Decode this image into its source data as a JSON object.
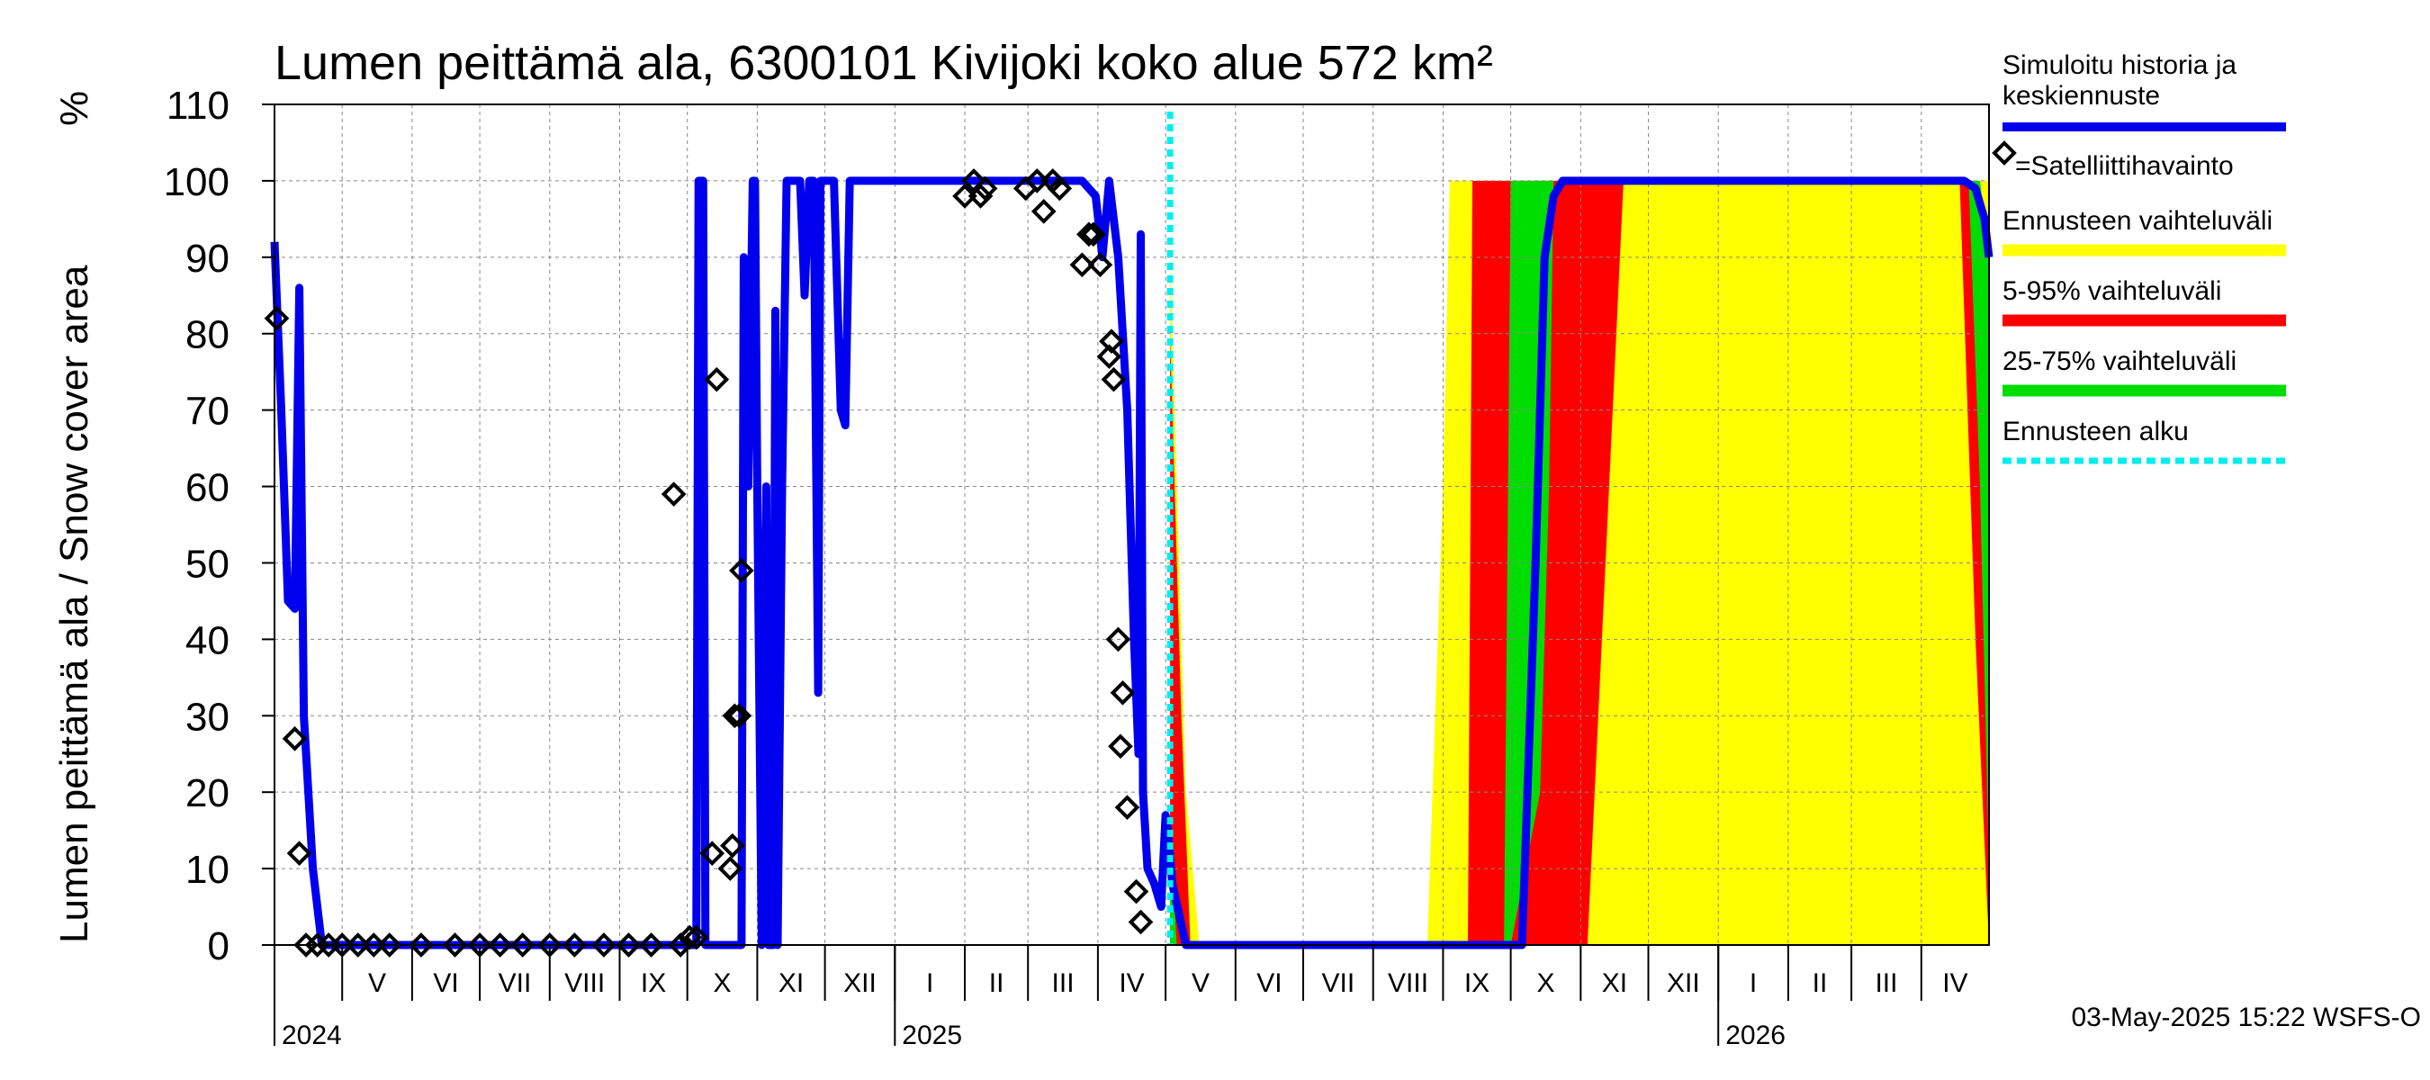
{
  "chart_data": {
    "type": "area",
    "title": "Lumen peittämä ala, 6300101 Kivijoki koko alue 572 km²",
    "ylabel": "Lumen peittämä ala / Snow cover area",
    "yunit": "%",
    "ylim": [
      0,
      110
    ],
    "yticks": [
      0,
      10,
      20,
      30,
      40,
      50,
      60,
      70,
      80,
      90,
      100,
      110
    ],
    "xlim": [
      "2024-04-01",
      "2026-05-01"
    ],
    "forecast_start": "2025-05-03",
    "grid": true,
    "months": [
      {
        "label": "V",
        "start": "2024-05-01"
      },
      {
        "label": "VI",
        "start": "2024-06-01"
      },
      {
        "label": "VII",
        "start": "2024-07-01"
      },
      {
        "label": "VIII",
        "start": "2024-08-01"
      },
      {
        "label": "IX",
        "start": "2024-09-01"
      },
      {
        "label": "X",
        "start": "2024-10-01"
      },
      {
        "label": "XI",
        "start": "2024-11-01"
      },
      {
        "label": "XII",
        "start": "2024-12-01"
      },
      {
        "label": "I",
        "start": "2025-01-01"
      },
      {
        "label": "II",
        "start": "2025-02-01"
      },
      {
        "label": "III",
        "start": "2025-03-01"
      },
      {
        "label": "IV",
        "start": "2025-04-01"
      },
      {
        "label": "V",
        "start": "2025-05-01"
      },
      {
        "label": "VI",
        "start": "2025-06-01"
      },
      {
        "label": "VII",
        "start": "2025-07-01"
      },
      {
        "label": "VIII",
        "start": "2025-08-01"
      },
      {
        "label": "IX",
        "start": "2025-09-01"
      },
      {
        "label": "X",
        "start": "2025-10-01"
      },
      {
        "label": "XI",
        "start": "2025-11-01"
      },
      {
        "label": "XII",
        "start": "2025-12-01"
      },
      {
        "label": "I",
        "start": "2026-01-01"
      },
      {
        "label": "II",
        "start": "2026-02-01"
      },
      {
        "label": "III",
        "start": "2026-03-01"
      },
      {
        "label": "IV",
        "start": "2026-04-01"
      }
    ],
    "years": [
      {
        "label": "2024",
        "date": "2024-04-01"
      },
      {
        "label": "2025",
        "date": "2025-01-01"
      },
      {
        "label": "2026",
        "date": "2026-01-01"
      }
    ],
    "series": [
      {
        "name": "Simuloitu historia ja keskiennuste",
        "color": "#0000ee",
        "points": [
          [
            "2024-04-01",
            92
          ],
          [
            "2024-04-04",
            70
          ],
          [
            "2024-04-07",
            45
          ],
          [
            "2024-04-10",
            44
          ],
          [
            "2024-04-12",
            86
          ],
          [
            "2024-04-14",
            30
          ],
          [
            "2024-04-18",
            10
          ],
          [
            "2024-04-22",
            0
          ],
          [
            "2024-10-05",
            0
          ],
          [
            "2024-10-06",
            100
          ],
          [
            "2024-10-08",
            100
          ],
          [
            "2024-10-09",
            0
          ],
          [
            "2024-10-25",
            0
          ],
          [
            "2024-10-26",
            90
          ],
          [
            "2024-10-28",
            60
          ],
          [
            "2024-10-30",
            100
          ],
          [
            "2024-10-31",
            100
          ],
          [
            "2024-11-01",
            60
          ],
          [
            "2024-11-03",
            0
          ],
          [
            "2024-11-05",
            60
          ],
          [
            "2024-11-06",
            0
          ],
          [
            "2024-11-08",
            0
          ],
          [
            "2024-11-09",
            83
          ],
          [
            "2024-11-10",
            0
          ],
          [
            "2024-11-12",
            60
          ],
          [
            "2024-11-14",
            100
          ],
          [
            "2024-11-20",
            100
          ],
          [
            "2024-11-22",
            85
          ],
          [
            "2024-11-24",
            100
          ],
          [
            "2024-11-26",
            100
          ],
          [
            "2024-11-28",
            33
          ],
          [
            "2024-11-29",
            100
          ],
          [
            "2024-12-05",
            100
          ],
          [
            "2024-12-08",
            70
          ],
          [
            "2024-12-10",
            68
          ],
          [
            "2024-12-12",
            100
          ],
          [
            "2025-03-25",
            100
          ],
          [
            "2025-03-31",
            98
          ],
          [
            "2025-04-03",
            90
          ],
          [
            "2025-04-06",
            100
          ],
          [
            "2025-04-10",
            90
          ],
          [
            "2025-04-14",
            70
          ],
          [
            "2025-04-17",
            40
          ],
          [
            "2025-04-19",
            25
          ],
          [
            "2025-04-20",
            93
          ],
          [
            "2025-04-21",
            20
          ],
          [
            "2025-04-23",
            10
          ],
          [
            "2025-04-26",
            8
          ],
          [
            "2025-04-29",
            5
          ],
          [
            "2025-05-01",
            17
          ],
          [
            "2025-05-02",
            15
          ],
          [
            "2025-05-04",
            8
          ],
          [
            "2025-05-10",
            0
          ],
          [
            "2025-10-06",
            0
          ],
          [
            "2025-10-12",
            50
          ],
          [
            "2025-10-16",
            90
          ],
          [
            "2025-10-20",
            98
          ],
          [
            "2025-10-24",
            100
          ],
          [
            "2026-04-20",
            100
          ],
          [
            "2026-04-25",
            99
          ],
          [
            "2026-04-29",
            95
          ],
          [
            "2026-05-01",
            90
          ]
        ]
      },
      {
        "name": "Ennusteen vaihteluväli",
        "color": "#ffff00",
        "band": [
          [
            "2025-05-03",
            0,
            90
          ],
          [
            "2025-05-10",
            0,
            20
          ],
          [
            "2025-05-16",
            0,
            0
          ],
          [
            "2025-08-25",
            0,
            0
          ],
          [
            "2025-09-01",
            0,
            60
          ],
          [
            "2025-09-04",
            0,
            100
          ],
          [
            "2026-04-21",
            0,
            100
          ],
          [
            "2026-05-01",
            0,
            100
          ]
        ]
      },
      {
        "name": "5-95% vaihteluväli",
        "color": "#ff0000",
        "band": [
          [
            "2025-05-03",
            0,
            80
          ],
          [
            "2025-05-08",
            0,
            30
          ],
          [
            "2025-05-12",
            0,
            0
          ],
          [
            "2025-09-12",
            0,
            0
          ],
          [
            "2025-09-14",
            0,
            100
          ],
          [
            "2025-11-04",
            0,
            100
          ],
          [
            "2025-11-12",
            50,
            100
          ],
          [
            "2025-11-20",
            100,
            100
          ],
          [
            "2026-04-18",
            100,
            100
          ],
          [
            "2026-04-25",
            40,
            100
          ],
          [
            "2026-05-01",
            0,
            80
          ]
        ]
      },
      {
        "name": "25-75% vaihteluväli",
        "color": "#00dd00",
        "band": [
          [
            "2025-05-03",
            0,
            15
          ],
          [
            "2025-05-06",
            0,
            0
          ],
          [
            "2025-09-28",
            0,
            0
          ],
          [
            "2025-10-01",
            0,
            100
          ],
          [
            "2025-10-14",
            20,
            100
          ],
          [
            "2025-10-18",
            60,
            100
          ],
          [
            "2025-10-20",
            100,
            100
          ],
          [
            "2026-04-22",
            100,
            100
          ],
          [
            "2026-04-27",
            60,
            100
          ],
          [
            "2026-05-01",
            10,
            90
          ]
        ]
      },
      {
        "name": "Ennusteen alku",
        "color": "#00eeee"
      }
    ],
    "observations": {
      "name": "=Satelliittihavainto",
      "points": [
        [
          "2024-04-02",
          82
        ],
        [
          "2024-04-10",
          27
        ],
        [
          "2024-04-12",
          12
        ],
        [
          "2024-04-15",
          0
        ],
        [
          "2024-04-20",
          0
        ],
        [
          "2024-04-25",
          0
        ],
        [
          "2024-05-01",
          0
        ],
        [
          "2024-05-08",
          0
        ],
        [
          "2024-05-15",
          0
        ],
        [
          "2024-05-22",
          0
        ],
        [
          "2024-06-05",
          0
        ],
        [
          "2024-06-20",
          0
        ],
        [
          "2024-07-01",
          0
        ],
        [
          "2024-07-10",
          0
        ],
        [
          "2024-07-20",
          0
        ],
        [
          "2024-08-01",
          0
        ],
        [
          "2024-08-12",
          0
        ],
        [
          "2024-08-25",
          0
        ],
        [
          "2024-09-05",
          0
        ],
        [
          "2024-09-15",
          0
        ],
        [
          "2024-09-25",
          59
        ],
        [
          "2024-09-28",
          0
        ],
        [
          "2024-10-02",
          1
        ],
        [
          "2024-10-05",
          1
        ],
        [
          "2024-10-12",
          12
        ],
        [
          "2024-10-14",
          74
        ],
        [
          "2024-10-20",
          10
        ],
        [
          "2024-10-21",
          13
        ],
        [
          "2024-10-22",
          30
        ],
        [
          "2024-10-24",
          30
        ],
        [
          "2024-10-25",
          49
        ],
        [
          "2025-02-01",
          98
        ],
        [
          "2025-02-05",
          100
        ],
        [
          "2025-02-08",
          98
        ],
        [
          "2025-02-10",
          99
        ],
        [
          "2025-02-28",
          99
        ],
        [
          "2025-03-05",
          100
        ],
        [
          "2025-03-08",
          96
        ],
        [
          "2025-03-12",
          100
        ],
        [
          "2025-03-15",
          99
        ],
        [
          "2025-03-25",
          89
        ],
        [
          "2025-03-28",
          93
        ],
        [
          "2025-03-30",
          93
        ],
        [
          "2025-04-02",
          89
        ],
        [
          "2025-04-06",
          77
        ],
        [
          "2025-04-07",
          79
        ],
        [
          "2025-04-08",
          74
        ],
        [
          "2025-04-10",
          40
        ],
        [
          "2025-04-11",
          26
        ],
        [
          "2025-04-12",
          33
        ],
        [
          "2025-04-14",
          18
        ],
        [
          "2025-04-18",
          7
        ],
        [
          "2025-04-20",
          3
        ]
      ]
    }
  },
  "footer": {
    "timestamp": "03-May-2025 15:22 WSFS-O"
  }
}
